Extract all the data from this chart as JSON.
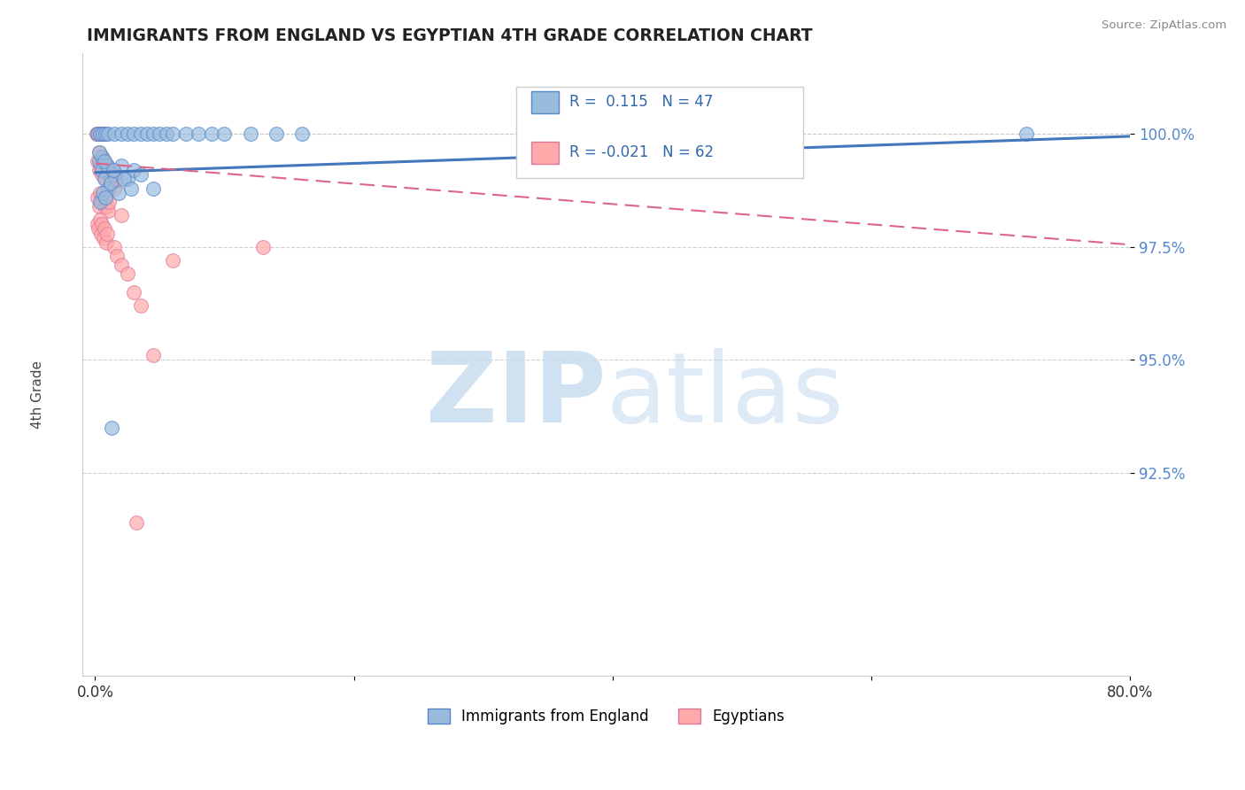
{
  "title": "IMMIGRANTS FROM ENGLAND VS EGYPTIAN 4TH GRADE CORRELATION CHART",
  "source_text": "Source: ZipAtlas.com",
  "xlabel": "",
  "ylabel": "4th Grade",
  "xlim": [
    -1.0,
    80.0
  ],
  "ylim": [
    88.0,
    101.8
  ],
  "yticks": [
    100.0,
    97.5,
    95.0,
    92.5
  ],
  "ytick_labels": [
    "100.0%",
    "97.5%",
    "95.0%",
    "92.5%"
  ],
  "xticks": [
    0.0,
    20.0,
    40.0,
    60.0,
    80.0
  ],
  "xtick_labels": [
    "0.0%",
    "",
    "",
    "",
    "80.0%"
  ],
  "legend_blue_label": "Immigrants from England",
  "legend_pink_label": "Egyptians",
  "R_blue": 0.115,
  "N_blue": 47,
  "R_pink": -0.021,
  "N_pink": 62,
  "blue_color": "#99BBDD",
  "pink_color": "#FFAAAA",
  "blue_edge_color": "#5588CC",
  "pink_edge_color": "#DD7799",
  "blue_line_color": "#4477BB",
  "pink_line_color": "#DD6688",
  "watermark_zip_color": "#C8DCF0",
  "watermark_atlas_color": "#C8DCF0",
  "blue_scatter": [
    [
      0.2,
      100.0
    ],
    [
      0.4,
      100.0
    ],
    [
      0.6,
      100.0
    ],
    [
      0.8,
      100.0
    ],
    [
      1.0,
      100.0
    ],
    [
      1.5,
      100.0
    ],
    [
      2.0,
      100.0
    ],
    [
      2.5,
      100.0
    ],
    [
      3.0,
      100.0
    ],
    [
      3.5,
      100.0
    ],
    [
      4.0,
      100.0
    ],
    [
      4.5,
      100.0
    ],
    [
      5.0,
      100.0
    ],
    [
      5.5,
      100.0
    ],
    [
      6.0,
      100.0
    ],
    [
      7.0,
      100.0
    ],
    [
      8.0,
      100.0
    ],
    [
      9.0,
      100.0
    ],
    [
      10.0,
      100.0
    ],
    [
      12.0,
      100.0
    ],
    [
      14.0,
      100.0
    ],
    [
      16.0,
      100.0
    ],
    [
      0.3,
      99.4
    ],
    [
      0.5,
      99.2
    ],
    [
      0.7,
      99.0
    ],
    [
      1.0,
      98.8
    ],
    [
      1.5,
      99.1
    ],
    [
      2.0,
      99.3
    ],
    [
      2.5,
      99.0
    ],
    [
      3.0,
      99.2
    ],
    [
      0.4,
      98.5
    ],
    [
      0.6,
      98.7
    ],
    [
      0.8,
      98.6
    ],
    [
      1.2,
      98.9
    ],
    [
      1.8,
      98.7
    ],
    [
      2.2,
      99.0
    ],
    [
      2.8,
      98.8
    ],
    [
      0.5,
      99.5
    ],
    [
      0.9,
      99.3
    ],
    [
      3.5,
      99.1
    ],
    [
      4.5,
      98.8
    ],
    [
      35.0,
      100.0
    ],
    [
      72.0,
      100.0
    ],
    [
      1.3,
      93.5
    ],
    [
      0.3,
      99.6
    ],
    [
      0.7,
      99.4
    ],
    [
      1.4,
      99.2
    ]
  ],
  "pink_scatter": [
    [
      0.1,
      100.0
    ],
    [
      0.15,
      100.0
    ],
    [
      0.2,
      100.0
    ],
    [
      0.25,
      100.0
    ],
    [
      0.3,
      100.0
    ],
    [
      0.35,
      100.0
    ],
    [
      0.4,
      100.0
    ],
    [
      0.45,
      100.0
    ],
    [
      0.5,
      100.0
    ],
    [
      0.55,
      100.0
    ],
    [
      0.6,
      100.0
    ],
    [
      0.65,
      100.0
    ],
    [
      0.7,
      100.0
    ],
    [
      0.2,
      99.4
    ],
    [
      0.3,
      99.2
    ],
    [
      0.4,
      99.3
    ],
    [
      0.5,
      99.1
    ],
    [
      0.6,
      99.4
    ],
    [
      0.7,
      99.2
    ],
    [
      0.8,
      99.0
    ],
    [
      0.9,
      99.3
    ],
    [
      1.0,
      99.1
    ],
    [
      1.1,
      99.2
    ],
    [
      1.2,
      99.0
    ],
    [
      1.3,
      98.9
    ],
    [
      1.4,
      99.1
    ],
    [
      1.5,
      98.8
    ],
    [
      1.6,
      99.0
    ],
    [
      0.2,
      98.6
    ],
    [
      0.3,
      98.4
    ],
    [
      0.4,
      98.7
    ],
    [
      0.5,
      98.5
    ],
    [
      0.6,
      98.6
    ],
    [
      0.7,
      98.4
    ],
    [
      0.8,
      98.6
    ],
    [
      0.9,
      98.4
    ],
    [
      1.0,
      98.3
    ],
    [
      1.1,
      98.5
    ],
    [
      0.15,
      98.0
    ],
    [
      0.25,
      97.9
    ],
    [
      0.35,
      98.1
    ],
    [
      0.45,
      97.8
    ],
    [
      0.55,
      98.0
    ],
    [
      0.65,
      97.7
    ],
    [
      0.75,
      97.9
    ],
    [
      0.85,
      97.6
    ],
    [
      0.95,
      97.8
    ],
    [
      1.5,
      97.5
    ],
    [
      1.7,
      97.3
    ],
    [
      2.0,
      97.1
    ],
    [
      2.5,
      96.9
    ],
    [
      3.0,
      96.5
    ],
    [
      3.5,
      96.2
    ],
    [
      6.0,
      97.2
    ],
    [
      0.3,
      99.6
    ],
    [
      0.5,
      99.5
    ],
    [
      0.7,
      99.4
    ],
    [
      0.9,
      99.3
    ],
    [
      2.0,
      98.2
    ],
    [
      4.5,
      95.1
    ],
    [
      13.0,
      97.5
    ],
    [
      3.2,
      91.4
    ]
  ],
  "blue_trend_x": [
    0.0,
    80.0
  ],
  "blue_trend_y": [
    99.15,
    99.95
  ],
  "pink_trend_x": [
    0.0,
    80.0
  ],
  "pink_trend_y": [
    99.35,
    97.55
  ]
}
